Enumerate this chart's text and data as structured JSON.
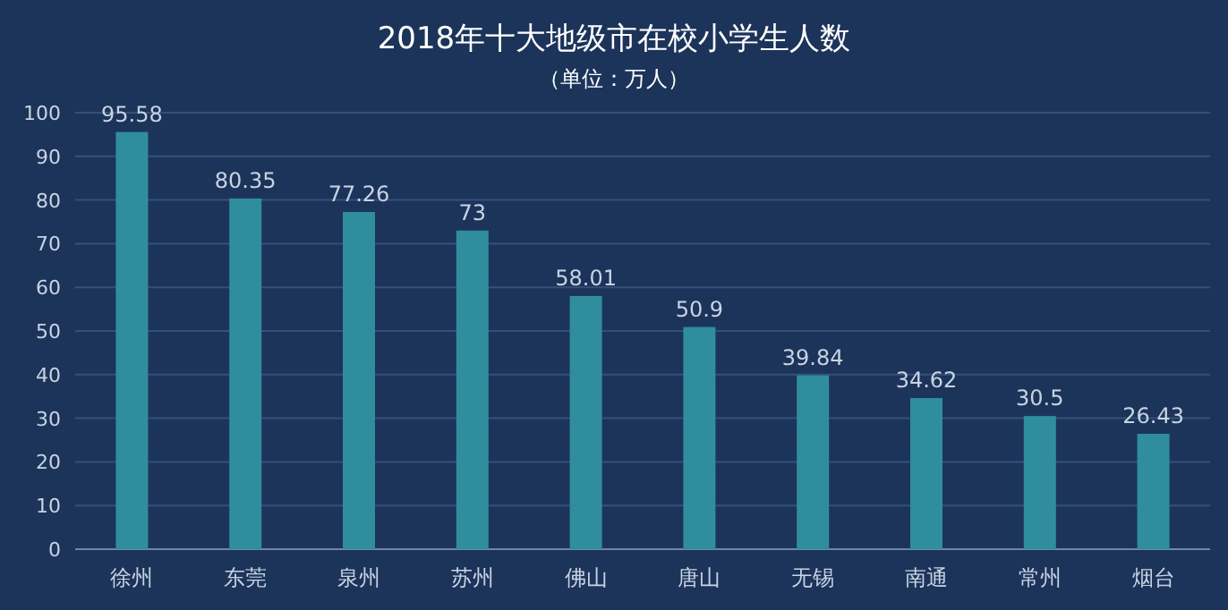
{
  "chart_data": {
    "type": "bar",
    "title": "2018年十大地级市在校小学生人数",
    "subtitle": "（单位：万人）",
    "categories": [
      "徐州",
      "东莞",
      "泉州",
      "苏州",
      "佛山",
      "唐山",
      "无锡",
      "南通",
      "常州",
      "烟台"
    ],
    "values": [
      95.58,
      80.35,
      77.26,
      73,
      58.01,
      50.9,
      39.84,
      34.62,
      30.5,
      26.43
    ],
    "color": "#2f8d9e",
    "ylim": [
      0,
      100
    ],
    "yticks": [
      0,
      10,
      20,
      30,
      40,
      50,
      60,
      70,
      80,
      90,
      100
    ],
    "grid": "y",
    "data_labels": true
  }
}
